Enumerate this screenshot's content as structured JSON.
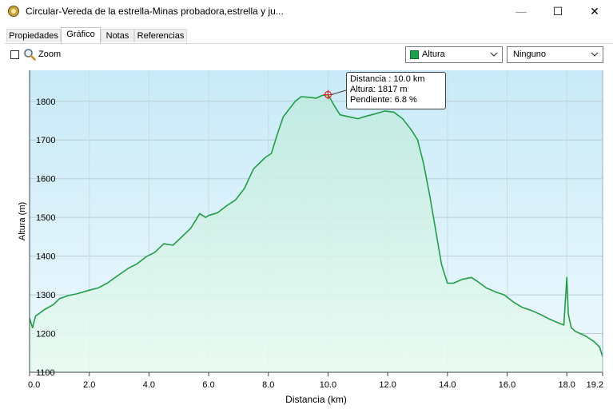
{
  "window": {
    "title": "Circular-Vereda de la estrella-Minas probadora,estrella y ju...",
    "minimize_glyph": "—",
    "maximize_glyph": "☐",
    "close_glyph": "✕"
  },
  "tabs": [
    {
      "label": "Propiedades"
    },
    {
      "label": "Gráfico",
      "active": true
    },
    {
      "label": "Notas"
    },
    {
      "label": "Referencias"
    }
  ],
  "toolbar": {
    "zoom_label": "Zoom",
    "zoom_checked": false,
    "series_select": {
      "value": "Altura",
      "swatch_color": "#1aa04a"
    },
    "overlay_select": {
      "value": "Ninguno"
    }
  },
  "tooltip": {
    "distance": "Distancia : 10.0 km",
    "altitude": "Altura: 1817 m",
    "slope": "Pendiente: 6.8 %"
  },
  "chart_data": {
    "type": "area",
    "xlabel": "Distancia  (km)",
    "ylabel": "Altura (m)",
    "xlim": [
      0,
      19.2
    ],
    "ylim": [
      1100,
      1880
    ],
    "x_ticks": [
      "0.0",
      "2.0",
      "4.0",
      "6.0",
      "8.0",
      "10.0",
      "12.0",
      "14.0",
      "16.0",
      "18.0",
      "19.2"
    ],
    "x_tick_values": [
      0,
      2,
      4,
      6,
      8,
      10,
      12,
      14,
      16,
      18,
      19.2
    ],
    "y_ticks": [
      "1100",
      "1200",
      "1300",
      "1400",
      "1500",
      "1600",
      "1700",
      "1800"
    ],
    "y_tick_values": [
      1100,
      1200,
      1300,
      1400,
      1500,
      1600,
      1700,
      1800
    ],
    "grid": true,
    "colors": {
      "line": "#1f9e45",
      "fill_top": "#c6ecf7",
      "fill_bottom": "#e8fbef",
      "bg_top": "#c8eaf8",
      "bg_bottom": "#eef9fd"
    },
    "series": [
      {
        "x": [
          0.0,
          0.1,
          0.2,
          0.5,
          0.8,
          1.0,
          1.3,
          1.6,
          2.0,
          2.3,
          2.6,
          3.0,
          3.3,
          3.6,
          3.9,
          4.2,
          4.5,
          4.8,
          5.1,
          5.4,
          5.7,
          5.9,
          6.0,
          6.3,
          6.6,
          6.9,
          7.2,
          7.5,
          7.7,
          7.9,
          8.1,
          8.3,
          8.5,
          8.7,
          8.9,
          9.1,
          9.4,
          9.6,
          9.8,
          10.0,
          10.2,
          10.4,
          10.7,
          11.0,
          11.3,
          11.6,
          11.9,
          12.2,
          12.5,
          12.8,
          13.0,
          13.2,
          13.4,
          13.6,
          13.8,
          14.0,
          14.2,
          14.5,
          14.8,
          15.0,
          15.3,
          15.6,
          15.9,
          16.2,
          16.5,
          16.8,
          17.1,
          17.4,
          17.7,
          17.9,
          18.0,
          18.05,
          18.15,
          18.3,
          18.6,
          18.9,
          19.1,
          19.2
        ],
        "y": [
          1240,
          1215,
          1245,
          1262,
          1275,
          1290,
          1298,
          1303,
          1312,
          1318,
          1330,
          1352,
          1368,
          1380,
          1398,
          1410,
          1432,
          1428,
          1450,
          1472,
          1510,
          1500,
          1505,
          1512,
          1530,
          1545,
          1575,
          1625,
          1640,
          1655,
          1665,
          1715,
          1760,
          1780,
          1800,
          1812,
          1810,
          1808,
          1815,
          1817,
          1790,
          1765,
          1760,
          1755,
          1762,
          1768,
          1775,
          1772,
          1755,
          1725,
          1700,
          1640,
          1560,
          1470,
          1380,
          1330,
          1330,
          1340,
          1345,
          1335,
          1318,
          1308,
          1300,
          1282,
          1268,
          1260,
          1250,
          1238,
          1228,
          1222,
          1345,
          1250,
          1215,
          1205,
          1195,
          1180,
          1165,
          1140
        ]
      }
    ]
  }
}
